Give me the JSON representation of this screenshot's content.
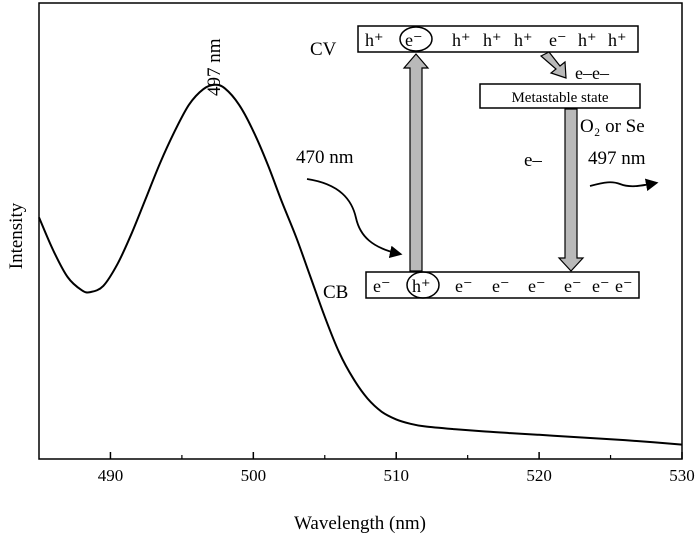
{
  "chart_data": {
    "type": "line",
    "xlabel": "Wavelength (nm)",
    "ylabel": "Intensity",
    "xlim": [
      485,
      530
    ],
    "ylim": [
      0,
      100
    ],
    "grid": false,
    "x_ticks": [
      "490",
      "500",
      "510",
      "520",
      "530"
    ],
    "x_tick_values": [
      490,
      500,
      510,
      520,
      530
    ],
    "peak_label": "497 nm",
    "peak_x": 497.3,
    "series": [
      {
        "x": [
          485,
          486,
          487,
          488,
          488.6,
          489.5,
          490.5,
          491.5,
          492.5,
          493.5,
          494.5,
          495.5,
          496.5,
          497.3,
          498,
          499,
          500,
          501,
          502,
          503,
          504,
          505,
          506,
          507,
          508,
          509,
          510,
          511,
          512,
          514,
          516,
          518,
          520,
          522,
          524,
          526,
          528,
          530
        ],
        "y": [
          51.5,
          44,
          38,
          35,
          34.6,
          36,
          41,
          48,
          56,
          64,
          71,
          77,
          80.5,
          81.5,
          80.7,
          77,
          71,
          63.5,
          55,
          47,
          38,
          29,
          21,
          15,
          10.5,
          7.5,
          5.8,
          4.8,
          4.2,
          3.6,
          3.1,
          2.7,
          2.3,
          1.9,
          1.5,
          1.1,
          0.6,
          0.1
        ]
      }
    ]
  },
  "inset": {
    "cv_label": "CV",
    "cb_label": "CB",
    "cv_top_left": [
      "h⁺",
      "e⁻"
    ],
    "cv_top_right": [
      "h⁺",
      "h⁺",
      "h⁺",
      "e⁻",
      "h⁺",
      "h⁺"
    ],
    "cb_bottom_left": [
      "e⁻",
      "h⁺"
    ],
    "cb_bottom_right": [
      "e⁻",
      "e⁻",
      "e⁻",
      "e⁻",
      "e⁻",
      "e⁻"
    ],
    "electrons_label": "e–e–",
    "metastable_label": "Metastable state",
    "o2_or_se": "O₂ or Se",
    "excitation_label": "470 nm",
    "emission_label": "497 nm",
    "e_minus_label": "e–"
  }
}
